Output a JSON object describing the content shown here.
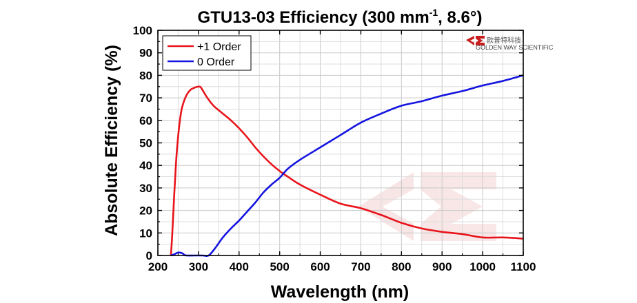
{
  "chart_data": {
    "type": "line",
    "title": "GTU13-03 Efficiency (300 mm",
    "title_sup": "-1",
    "title_end": ", 8.6°)",
    "xlabel": "Wavelength (nm)",
    "ylabel": "Absolute Efficiency (%)",
    "xlim": [
      200,
      1100
    ],
    "ylim": [
      0,
      100
    ],
    "xticks": [
      "200",
      "300",
      "400",
      "500",
      "600",
      "700",
      "800",
      "900",
      "1000",
      "1100"
    ],
    "yticks": [
      "0",
      "10",
      "20",
      "30",
      "40",
      "50",
      "60",
      "70",
      "80",
      "90",
      "100"
    ],
    "grid": true,
    "legend_position": "top-left",
    "series": [
      {
        "name": "+1 Order",
        "color": "#e8141b",
        "x": [
          232,
          235,
          240,
          245,
          250,
          255,
          260,
          270,
          280,
          290,
          300,
          305,
          310,
          320,
          330,
          340,
          360,
          380,
          400,
          420,
          440,
          460,
          480,
          500,
          520,
          550,
          600,
          650,
          700,
          750,
          800,
          850,
          900,
          950,
          1000,
          1050,
          1100
        ],
        "y": [
          0,
          8,
          26,
          42,
          53,
          61,
          66,
          71,
          73.5,
          74.5,
          75,
          74.8,
          73.5,
          70.5,
          68,
          66,
          63,
          60,
          56.5,
          52.5,
          48,
          44,
          40.5,
          37.5,
          35,
          31.5,
          27,
          23,
          21,
          18,
          14.5,
          12,
          10.5,
          9.5,
          8,
          8,
          7.5
        ]
      },
      {
        "name": "0 Order",
        "color": "#1414e0",
        "x": [
          232,
          240,
          250,
          260,
          265,
          270,
          290,
          310,
          325,
          340,
          360,
          380,
          400,
          420,
          440,
          460,
          480,
          500,
          520,
          550,
          600,
          650,
          700,
          750,
          800,
          850,
          900,
          950,
          1000,
          1050,
          1100
        ],
        "y": [
          0,
          0.5,
          1.3,
          1,
          0.3,
          0,
          0,
          0,
          0,
          3,
          8,
          12,
          15.5,
          19.5,
          23.5,
          28,
          31.5,
          34.5,
          38.5,
          42.5,
          48,
          53.5,
          59,
          63,
          66.5,
          68.5,
          71,
          73,
          75.5,
          77.5,
          80
        ]
      }
    ]
  },
  "watermark": {
    "brand_name_cn": "欧普特科技",
    "brand_name_en": "GOLDEN WAY SCIENTIFIC"
  }
}
